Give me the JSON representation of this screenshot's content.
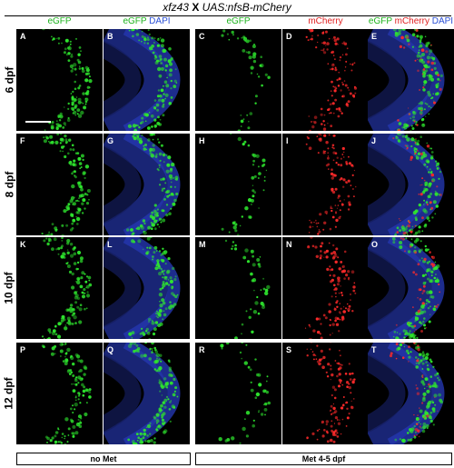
{
  "title": {
    "gene": "xfz43",
    "cross": "X",
    "construct": "UAS:nfsB-mChery"
  },
  "columns": [
    {
      "parts": [
        {
          "text": "eGFP",
          "color": "g"
        }
      ]
    },
    {
      "parts": [
        {
          "text": "eGFP",
          "color": "g"
        },
        {
          "text": " DAPI",
          "color": "b"
        }
      ]
    },
    {
      "parts": [
        {
          "text": "eGFP",
          "color": "g"
        }
      ]
    },
    {
      "parts": [
        {
          "text": "mCherry",
          "color": "r"
        }
      ]
    },
    {
      "parts": [
        {
          "text": "eGFP",
          "color": "g"
        },
        {
          "text": " mCherry",
          "color": "r"
        },
        {
          "text": " DAPI",
          "color": "b"
        }
      ]
    }
  ],
  "rows": [
    {
      "label": "6 dpf",
      "panels": [
        "A",
        "B",
        "C",
        "D",
        "E"
      ]
    },
    {
      "label": "8 dpf",
      "panels": [
        "F",
        "G",
        "H",
        "I",
        "J"
      ]
    },
    {
      "label": "10 dpf",
      "panels": [
        "K",
        "L",
        "M",
        "N",
        "O"
      ]
    },
    {
      "label": "12 dpf",
      "panels": [
        "P",
        "Q",
        "R",
        "S",
        "T"
      ]
    }
  ],
  "footer": {
    "left": "no Met",
    "right": "Met 4-5 dpf"
  },
  "colors": {
    "green": "#2ee62e",
    "red": "#ff2a2a",
    "blue": "#2233aa",
    "black": "#000000"
  }
}
